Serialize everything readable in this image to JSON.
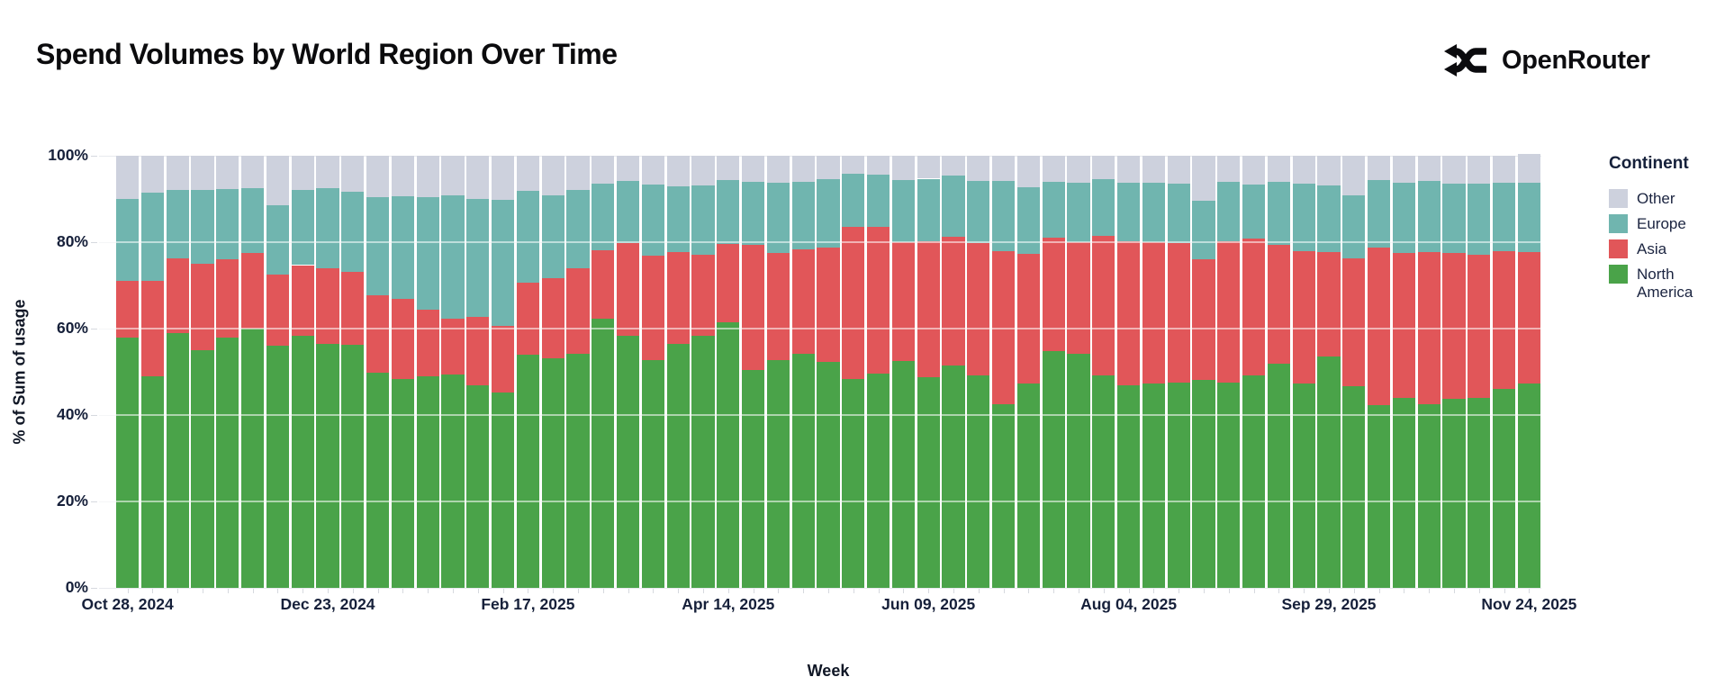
{
  "header": {
    "title": "Spend Volumes by World Region Over Time",
    "brand": "OpenRouter"
  },
  "legend": {
    "title": "Continent",
    "items": [
      {
        "label": "Other",
        "color": "#cdd1dd"
      },
      {
        "label": "Europe",
        "color": "#70b5af"
      },
      {
        "label": "Asia",
        "color": "#e15659"
      },
      {
        "label": "North America",
        "color": "#4aa349"
      }
    ]
  },
  "axes": {
    "y_title": "% of Sum of usage",
    "x_title": "Week",
    "y_ticks": [
      "0%",
      "20%",
      "40%",
      "60%",
      "80%",
      "100%"
    ],
    "x_tick_labels": [
      "Oct 28, 2024",
      "Dec 23, 2024",
      "Feb 17, 2025",
      "Apr 14, 2025",
      "Jun 09, 2025",
      "Aug 04, 2025",
      "Sep 29, 2025",
      "Nov 24, 2025"
    ]
  },
  "chart_data": {
    "type": "bar",
    "stacked": true,
    "percent": true,
    "title": "Spend Volumes by World Region Over Time",
    "xlabel": "Week",
    "ylabel": "% of Sum of usage",
    "ylim": [
      0,
      100
    ],
    "grid": true,
    "legend_position": "right",
    "x_tick_indices": [
      0,
      8,
      16,
      24,
      32,
      40,
      48,
      56
    ],
    "categories": [
      "Oct 28, 2024",
      "Nov 04, 2024",
      "Nov 11, 2024",
      "Nov 18, 2024",
      "Nov 25, 2024",
      "Dec 02, 2024",
      "Dec 09, 2024",
      "Dec 16, 2024",
      "Dec 23, 2024",
      "Dec 30, 2024",
      "Jan 06, 2025",
      "Jan 13, 2025",
      "Jan 20, 2025",
      "Jan 27, 2025",
      "Feb 03, 2025",
      "Feb 10, 2025",
      "Feb 17, 2025",
      "Feb 24, 2025",
      "Mar 03, 2025",
      "Mar 10, 2025",
      "Mar 17, 2025",
      "Mar 24, 2025",
      "Mar 31, 2025",
      "Apr 07, 2025",
      "Apr 14, 2025",
      "Apr 21, 2025",
      "Apr 28, 2025",
      "May 05, 2025",
      "May 12, 2025",
      "May 19, 2025",
      "May 26, 2025",
      "Jun 02, 2025",
      "Jun 09, 2025",
      "Jun 16, 2025",
      "Jun 23, 2025",
      "Jun 30, 2025",
      "Jul 07, 2025",
      "Jul 14, 2025",
      "Jul 21, 2025",
      "Jul 28, 2025",
      "Aug 04, 2025",
      "Aug 11, 2025",
      "Aug 18, 2025",
      "Aug 25, 2025",
      "Sep 01, 2025",
      "Sep 08, 2025",
      "Sep 15, 2025",
      "Sep 22, 2025",
      "Sep 29, 2025",
      "Oct 06, 2025",
      "Oct 13, 2025",
      "Oct 20, 2025",
      "Oct 27, 2025",
      "Nov 03, 2025",
      "Nov 10, 2025",
      "Nov 17, 2025",
      "Nov 24, 2025"
    ],
    "series": [
      {
        "name": "North America",
        "color": "#4aa349",
        "values": [
          58.0,
          49.0,
          59.0,
          55.0,
          58.0,
          60.0,
          56.0,
          58.3,
          56.4,
          56.2,
          49.7,
          48.3,
          48.9,
          49.4,
          46.9,
          45.2,
          54.0,
          53.1,
          54.1,
          62.2,
          58.3,
          52.7,
          56.5,
          58.3,
          61.4,
          50.4,
          52.7,
          54.1,
          52.4,
          48.3,
          49.6,
          52.5,
          48.8,
          51.5,
          49.2,
          42.6,
          47.4,
          54.8,
          54.1,
          49.2,
          46.8,
          47.4,
          47.6,
          48.2,
          47.6,
          49.2,
          51.8,
          47.4,
          53.6,
          46.7,
          42.3,
          44.0,
          42.5,
          43.7,
          43.9,
          46.0,
          47.2
        ]
      },
      {
        "name": "Asia",
        "color": "#e15659",
        "values": [
          13.0,
          22.0,
          17.3,
          20.0,
          18.0,
          17.5,
          16.5,
          16.4,
          17.5,
          17.0,
          18.1,
          18.5,
          15.4,
          13.0,
          15.9,
          15.4,
          16.6,
          18.6,
          19.8,
          16.0,
          21.5,
          24.1,
          21.2,
          18.7,
          18.2,
          28.9,
          24.8,
          24.3,
          26.4,
          35.2,
          33.9,
          27.6,
          31.5,
          29.7,
          30.6,
          35.3,
          30.0,
          26.2,
          25.9,
          32.2,
          33.5,
          32.7,
          32.2,
          27.8,
          32.7,
          31.6,
          27.5,
          30.5,
          24.1,
          29.6,
          36.5,
          33.5,
          35.2,
          33.8,
          33.1,
          31.9,
          30.5
        ]
      },
      {
        "name": "Europe",
        "color": "#70b5af",
        "values": [
          19.0,
          20.5,
          15.7,
          17.0,
          16.3,
          15.0,
          16.1,
          17.4,
          18.6,
          18.4,
          22.6,
          23.9,
          26.1,
          28.4,
          27.2,
          29.3,
          21.2,
          19.2,
          18.2,
          15.3,
          14.4,
          16.5,
          15.3,
          16.2,
          14.7,
          14.7,
          16.3,
          15.6,
          15.8,
          12.3,
          12.1,
          14.3,
          14.4,
          14.2,
          14.4,
          16.3,
          15.4,
          13.0,
          13.8,
          13.2,
          13.5,
          13.6,
          13.7,
          13.5,
          13.7,
          12.5,
          14.7,
          15.6,
          15.5,
          14.6,
          15.5,
          16.2,
          16.5,
          16.0,
          16.5,
          15.9,
          16.1
        ]
      },
      {
        "name": "Other",
        "color": "#cdd1dd",
        "values": [
          10.0,
          8.5,
          8.0,
          8.0,
          7.7,
          7.5,
          11.4,
          7.9,
          7.5,
          8.4,
          9.6,
          9.3,
          9.6,
          9.2,
          10.0,
          10.1,
          8.2,
          9.1,
          7.9,
          6.5,
          5.8,
          6.7,
          7.0,
          6.8,
          5.7,
          6.0,
          6.2,
          6.0,
          5.4,
          4.2,
          4.4,
          5.6,
          5.3,
          4.6,
          5.8,
          5.8,
          7.2,
          6.0,
          6.2,
          5.4,
          6.2,
          6.3,
          6.5,
          10.5,
          6.0,
          6.7,
          6.0,
          6.5,
          6.8,
          9.1,
          5.7,
          6.3,
          5.8,
          6.5,
          6.5,
          6.2,
          6.7
        ]
      }
    ]
  }
}
